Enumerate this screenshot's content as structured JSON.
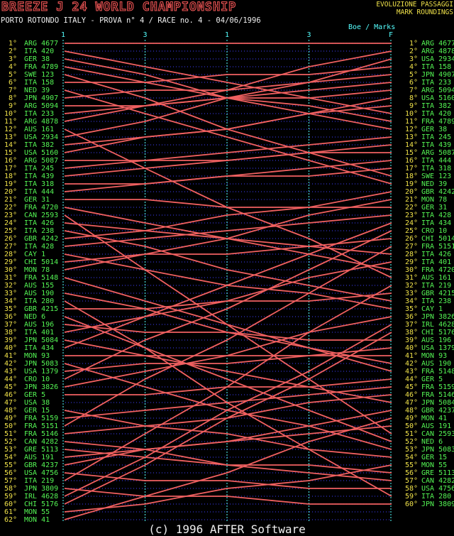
{
  "header": {
    "title": "BREEZE J 24 WORLD CHAMPIONSHIP",
    "right_line1": "EVOLUZIONE PASSAGGI",
    "right_line2": "MARK ROUNDINGS",
    "subtitle": "PORTO ROTONDO ITALY - PROVA n° 4 / RACE no. 4 - 04/06/1996",
    "marks_legend": "Boe / Marks"
  },
  "footer": {
    "copyright": "(c) 1996 AFTER Software"
  },
  "colors": {
    "background": "#000000",
    "title_red": "#e85555",
    "yellow": "#f0e24a",
    "green": "#54f554",
    "cyan": "#55ffff",
    "line_red": "#f06060",
    "grid_blue": "#3434cf",
    "white": "#eeeeee"
  },
  "chart_data": {
    "type": "line",
    "subtype": "bump-chart-of-race-positions",
    "title": "BREEZE J 24 WORLD CHAMPIONSHIP - RACE no. 4 - mark roundings evolution",
    "marks": [
      "1",
      "3",
      "1",
      "3",
      "F"
    ],
    "left_axis": "position at first mark rounding (1° - 62°)",
    "right_axis": "finish position (1° - 60°)",
    "grid": "horizontal dotted row per position, vertical dashed line per mark",
    "order_at_first_mark": [
      "ARG 4677",
      "ITA 420",
      "GER 38",
      "FRA 4789",
      "SWE 123",
      "ITA 158",
      "NED 39",
      "JPN 4907",
      "ARG 5094",
      "ITA 233",
      "ARG 4878",
      "AUS 161",
      "USA 2934",
      "ITA 382",
      "USA 5160",
      "ARG 5087",
      "ITA 245",
      "ITA 439",
      "ITA 318",
      "ITA 444",
      "GER 31",
      "FRA 4720",
      "CAN 2593",
      "ITA 426",
      "ITA 238",
      "GBR 4242",
      "ITA 428",
      "CAY 1",
      "CHI 5014",
      "MON 78",
      "FRA 5148",
      "AUS 155",
      "AUS 190",
      "ITA 280",
      "GBR 4215",
      "NED 6",
      "AUS 196",
      "ITA 401",
      "JPN 5084",
      "ITA 434",
      "MON 93",
      "JPN 5083",
      "USA 1379",
      "CRO 10",
      "JPN 3826",
      "GER 5",
      "USA 38",
      "GER 15",
      "FRA 5159",
      "FRA 5151",
      "FRA 5146",
      "CAN 4282",
      "GRE 5113",
      "AUS 191",
      "GBR 4237",
      "USA 4756",
      "ITA 219",
      "JPN 3809",
      "IRL 4628",
      "CHI 5176",
      "MON 55",
      "MON 41"
    ],
    "finish_order": [
      "ARG 4677",
      "ARG 4878",
      "USA 2934",
      "ITA 158",
      "JPN 4907",
      "ITA 233",
      "ARG 5094",
      "USA 5160",
      "ITA 382",
      "ITA 420",
      "FRA 4789",
      "GER 38",
      "ITA 245",
      "ITA 439",
      "ARG 5087",
      "ITA 444",
      "ITA 318",
      "SWE 123",
      "NED 39",
      "GBR 4242",
      "MON 78",
      "GER 31",
      "ITA 428",
      "ITA 434",
      "CRO 10",
      "CHI 5014",
      "FRA 5151",
      "ITA 426",
      "ITA 401",
      "FRA 4720",
      "AUS 161",
      "ITA 219",
      "GBR 4215",
      "ITA 238",
      "CAY 1",
      "JPN 3826",
      "IRL 4628",
      "CHI 5176",
      "AUS 196",
      "USA 1379",
      "MON 93",
      "AUS 190",
      "FRA 5148",
      "GER 5",
      "FRA 5159",
      "FRA 5146",
      "JPN 5084",
      "GBR 4237",
      "MON 41",
      "AUS 191",
      "CAN 2593",
      "NED 6",
      "JPN 5083",
      "GER 15",
      "MON 55",
      "GRE 5113",
      "CAN 4282",
      "USA 4756",
      "ITA 280",
      "JPN 3809"
    ]
  }
}
